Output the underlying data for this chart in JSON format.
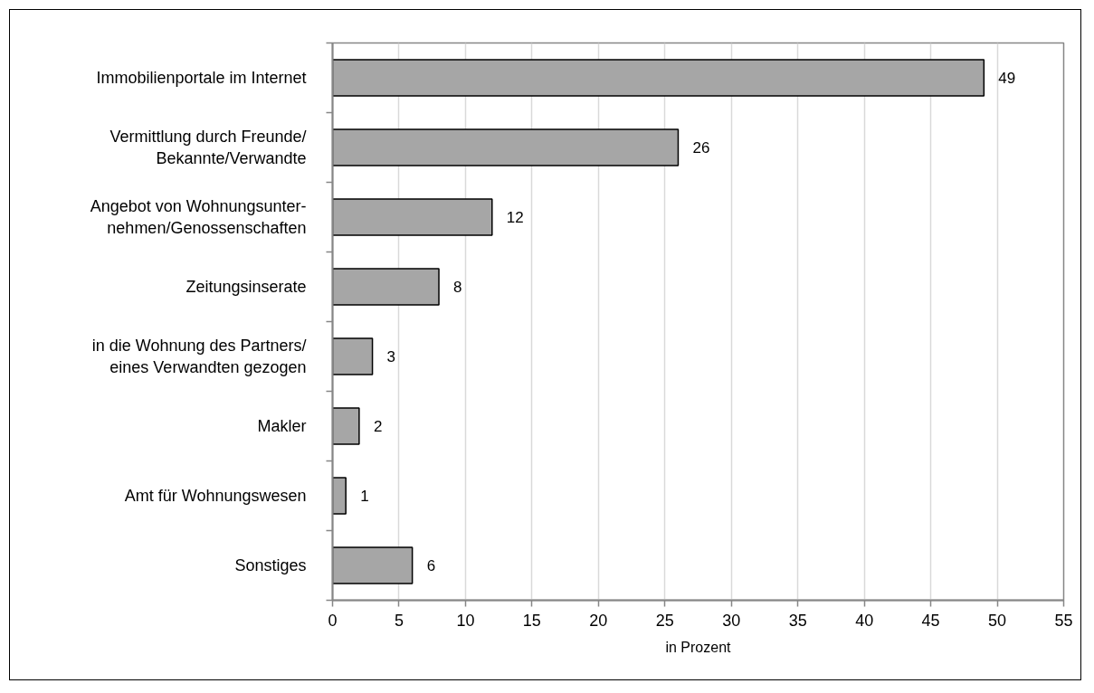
{
  "chart_data": {
    "type": "bar",
    "orientation": "horizontal",
    "categories": [
      "Immobilienportale im Internet",
      "Vermittlung durch Freunde/\nBekannte/Verwandte",
      "Angebot von Wohnungsunter-\nnehmen/Genossenschaften",
      "Zeitungsinserate",
      "in die Wohnung des Partners/\neines Verwandten gezogen",
      "Makler",
      "Amt für Wohnungswesen",
      "Sonstiges"
    ],
    "values": [
      49,
      26,
      12,
      8,
      3,
      2,
      1,
      6
    ],
    "color": "#a6a6a6",
    "xlabel": "in Prozent",
    "xlim": [
      0,
      55
    ],
    "xticks": [
      0,
      5,
      10,
      15,
      20,
      25,
      30,
      35,
      40,
      45,
      50,
      55
    ],
    "grid": "x",
    "data_labels": true
  }
}
